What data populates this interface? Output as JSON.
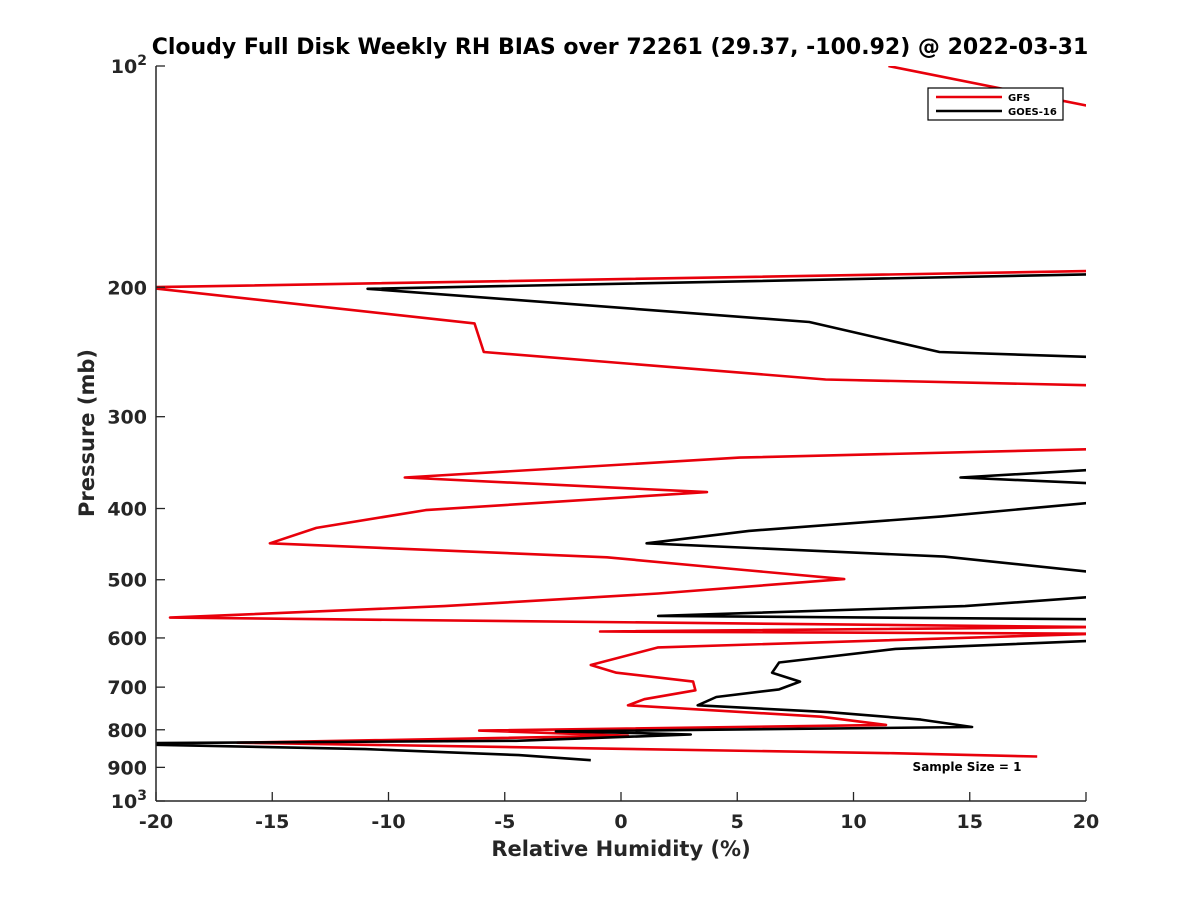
{
  "colors": {
    "gfs": "#e8000b",
    "goes": "#000000",
    "axis": "#262626"
  },
  "chart_data": {
    "type": "line",
    "title": "Cloudy Full Disk Weekly RH BIAS over 72261 (29.37, -100.92) @ 2022-03-31",
    "xlabel": "Relative Humidity (%)",
    "ylabel": "Pressure (mb)",
    "xlim": [
      -20,
      20
    ],
    "ylim": [
      100,
      1000
    ],
    "yscale": "log",
    "y_reversed": true,
    "grid": false,
    "legend_position": "top-right",
    "x_ticks": [
      {
        "value": -20,
        "label": "-20"
      },
      {
        "value": -15,
        "label": "-15"
      },
      {
        "value": -10,
        "label": "-10"
      },
      {
        "value": -5,
        "label": "-5"
      },
      {
        "value": 0,
        "label": "0"
      },
      {
        "value": 5,
        "label": "5"
      },
      {
        "value": 10,
        "label": "10"
      },
      {
        "value": 15,
        "label": "15"
      },
      {
        "value": 20,
        "label": "20"
      }
    ],
    "y_ticks": [
      {
        "value": 100,
        "base": "10",
        "exp": "2"
      },
      {
        "value": 200,
        "label": "200"
      },
      {
        "value": 300,
        "label": "300"
      },
      {
        "value": 400,
        "label": "400"
      },
      {
        "value": 500,
        "label": "500"
      },
      {
        "value": 600,
        "label": "600"
      },
      {
        "value": 700,
        "label": "700"
      },
      {
        "value": 800,
        "label": "800"
      },
      {
        "value": 900,
        "label": "900"
      },
      {
        "value": 1000,
        "base": "10",
        "exp": "3"
      }
    ],
    "series": [
      {
        "name": "GFS",
        "color": "#e8000b",
        "points": [
          [
            11.5,
            100
          ],
          [
            20.5,
            114
          ],
          [
            20.5,
            190
          ],
          [
            -20.5,
            200
          ],
          [
            -6.3,
            224
          ],
          [
            -5.9,
            245
          ],
          [
            8.8,
            267
          ],
          [
            20.5,
            272
          ],
          [
            20.5,
            332
          ],
          [
            5.1,
            341
          ],
          [
            -9.3,
            363
          ],
          [
            3.7,
            380
          ],
          [
            -8.4,
            402
          ],
          [
            -13.1,
            425
          ],
          [
            -15.1,
            446
          ],
          [
            -0.6,
            466
          ],
          [
            5.3,
            485
          ],
          [
            9.6,
            499
          ],
          [
            1.6,
            522
          ],
          [
            -7.6,
            543
          ],
          [
            -19.4,
            563
          ],
          [
            20.5,
            580
          ],
          [
            -0.9,
            588
          ],
          [
            20.5,
            592
          ],
          [
            1.6,
            618
          ],
          [
            -1.3,
            653
          ],
          [
            -0.2,
            669
          ],
          [
            3.1,
            688
          ],
          [
            3.2,
            707
          ],
          [
            1.0,
            727
          ],
          [
            0.3,
            741
          ],
          [
            8.6,
            768
          ],
          [
            11.4,
            788
          ],
          [
            -6.1,
            802
          ],
          [
            0.3,
            815
          ],
          [
            -16.5,
            833
          ],
          [
            11.7,
            861
          ],
          [
            17.9,
            870
          ]
        ]
      },
      {
        "name": "GOES-16",
        "color": "#000000",
        "points": [
          [
            20.5,
            192
          ],
          [
            -10.9,
            201
          ],
          [
            8.1,
            223
          ],
          [
            13.7,
            245
          ],
          [
            20.5,
            249
          ],
          [
            20.5,
            354
          ],
          [
            14.6,
            363
          ],
          [
            20.5,
            370
          ],
          [
            20.5,
            392
          ],
          [
            13.8,
            410
          ],
          [
            5.5,
            429
          ],
          [
            1.1,
            446
          ],
          [
            13.9,
            465
          ],
          [
            20.5,
            489
          ],
          [
            20.5,
            527
          ],
          [
            14.8,
            543
          ],
          [
            1.6,
            560
          ],
          [
            20.5,
            566
          ],
          [
            20.5,
            572
          ],
          [
            20.5,
            605
          ],
          [
            11.8,
            621
          ],
          [
            6.8,
            648
          ],
          [
            6.5,
            669
          ],
          [
            7.7,
            688
          ],
          [
            6.8,
            705
          ],
          [
            4.1,
            722
          ],
          [
            3.3,
            741
          ],
          [
            8.9,
            757
          ],
          [
            12.9,
            775
          ],
          [
            15.1,
            793
          ],
          [
            -2.8,
            804
          ],
          [
            -0.2,
            807
          ],
          [
            3.0,
            812
          ],
          [
            -4.5,
            828
          ],
          [
            -20.5,
            834
          ],
          [
            -20.5,
            838
          ],
          [
            -11.0,
            850
          ],
          [
            -4.4,
            866
          ],
          [
            -1.3,
            880
          ]
        ]
      }
    ],
    "annotations": [
      "Sample Size = 1"
    ]
  }
}
